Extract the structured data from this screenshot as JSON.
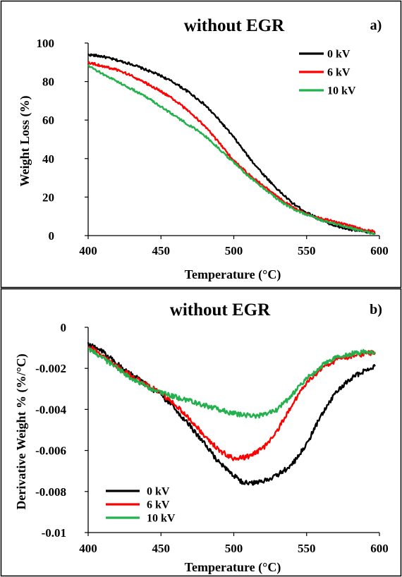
{
  "chart_data": [
    {
      "id": "a",
      "type": "line",
      "title": "without EGR",
      "panel_label": "a)",
      "xlabel": "Temperature (°C)",
      "ylabel": "Weight Loss (%)",
      "xlim": [
        400,
        600
      ],
      "ylim": [
        0,
        100
      ],
      "xticks": [
        400,
        450,
        500,
        550,
        600
      ],
      "yticks": [
        0,
        20,
        40,
        60,
        80,
        100
      ],
      "xtick_labels": [
        "400",
        "450",
        "500",
        "550",
        "600"
      ],
      "ytick_labels": [
        "0",
        "20",
        "40",
        "60",
        "80",
        "100"
      ],
      "grid": false,
      "legend_position": "top-right",
      "noise": 0.6,
      "series": [
        {
          "name": "0 kV",
          "color": "#000000",
          "x": [
            400,
            410,
            420,
            430,
            440,
            450,
            460,
            470,
            480,
            490,
            500,
            510,
            520,
            530,
            540,
            550,
            560,
            570,
            580,
            590,
            597
          ],
          "y": [
            94,
            93,
            91,
            89,
            86,
            83,
            79,
            74,
            68,
            60,
            51,
            41,
            32,
            24,
            17,
            12,
            8,
            5,
            3,
            2,
            1
          ]
        },
        {
          "name": "6 kV",
          "color": "#ff0000",
          "x": [
            400,
            410,
            420,
            430,
            440,
            450,
            460,
            470,
            480,
            490,
            500,
            510,
            520,
            530,
            540,
            550,
            560,
            570,
            580,
            590,
            597
          ],
          "y": [
            90,
            88,
            86,
            83,
            79,
            75,
            70,
            64,
            57,
            48,
            39,
            32,
            26,
            20,
            15,
            11,
            9,
            7,
            5,
            3,
            2
          ]
        },
        {
          "name": "10 kV",
          "color": "#22b14c",
          "x": [
            400,
            410,
            420,
            430,
            440,
            450,
            460,
            470,
            480,
            490,
            500,
            510,
            520,
            530,
            540,
            550,
            560,
            570,
            580,
            590,
            597
          ],
          "y": [
            88,
            84,
            80,
            76,
            72,
            67,
            62,
            57,
            52,
            45,
            38,
            31,
            25,
            19,
            14,
            11,
            8,
            6,
            4,
            2,
            1
          ]
        }
      ]
    },
    {
      "id": "b",
      "type": "line",
      "title": "without EGR",
      "panel_label": "b)",
      "xlabel": "Temperature (°C)",
      "ylabel": "Derivative Weight % (%/°C)",
      "xlim": [
        400,
        600
      ],
      "ylim": [
        -0.01,
        0
      ],
      "xticks": [
        400,
        450,
        500,
        550,
        600
      ],
      "yticks": [
        0,
        -0.002,
        -0.004,
        -0.006,
        -0.008,
        -0.01
      ],
      "xtick_labels": [
        "400",
        "450",
        "500",
        "550",
        "600"
      ],
      "ytick_labels": [
        "0",
        "-0.002",
        "-0.004",
        "-0.006",
        "-0.008",
        "-0.01"
      ],
      "grid": false,
      "legend_position": "bottom-left",
      "noise": 0.00012,
      "series": [
        {
          "name": "0 kV",
          "color": "#000000",
          "x": [
            400,
            410,
            420,
            430,
            440,
            450,
            460,
            470,
            480,
            490,
            500,
            505,
            510,
            520,
            530,
            540,
            550,
            560,
            570,
            580,
            590,
            597
          ],
          "y": [
            -0.0008,
            -0.0012,
            -0.0018,
            -0.0023,
            -0.0028,
            -0.0033,
            -0.004,
            -0.0048,
            -0.0057,
            -0.0066,
            -0.0072,
            -0.0075,
            -0.0076,
            -0.0075,
            -0.0072,
            -0.0067,
            -0.0057,
            -0.0043,
            -0.0032,
            -0.0025,
            -0.0021,
            -0.0019
          ]
        },
        {
          "name": "6 kV",
          "color": "#ff0000",
          "x": [
            400,
            410,
            420,
            430,
            440,
            450,
            460,
            470,
            480,
            490,
            500,
            510,
            520,
            530,
            540,
            550,
            560,
            570,
            580,
            590,
            597
          ],
          "y": [
            -0.0009,
            -0.0014,
            -0.0019,
            -0.0024,
            -0.0028,
            -0.0032,
            -0.0038,
            -0.0045,
            -0.0053,
            -0.006,
            -0.0064,
            -0.0063,
            -0.0059,
            -0.005,
            -0.0038,
            -0.0027,
            -0.002,
            -0.0016,
            -0.0014,
            -0.0013,
            -0.0012
          ]
        },
        {
          "name": "10 kV",
          "color": "#22b14c",
          "x": [
            400,
            410,
            420,
            430,
            440,
            450,
            460,
            470,
            480,
            490,
            500,
            510,
            520,
            530,
            540,
            550,
            560,
            570,
            580,
            590,
            597
          ],
          "y": [
            -0.001,
            -0.0015,
            -0.002,
            -0.0025,
            -0.0029,
            -0.0032,
            -0.0034,
            -0.0036,
            -0.0038,
            -0.004,
            -0.0042,
            -0.0043,
            -0.0043,
            -0.004,
            -0.0033,
            -0.0025,
            -0.0019,
            -0.0015,
            -0.0013,
            -0.0012,
            -0.0012
          ]
        }
      ]
    }
  ]
}
